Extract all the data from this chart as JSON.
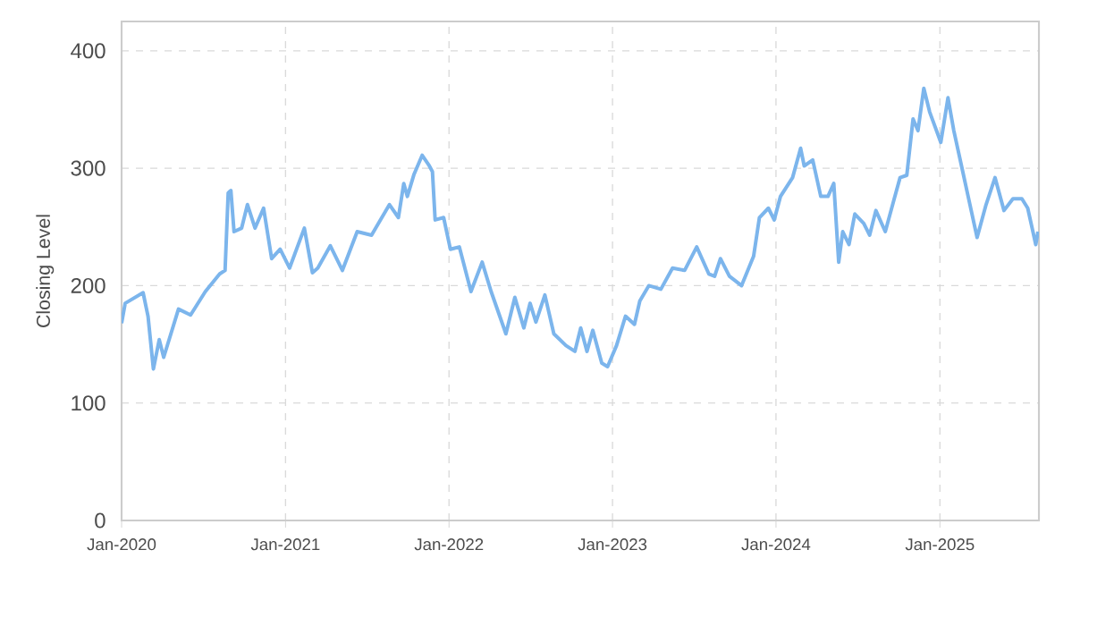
{
  "chart_data": {
    "type": "line",
    "ylabel": "Closing Level",
    "xlim": [
      "2020-01-01",
      "2025-08-10"
    ],
    "ylim": [
      0,
      425
    ],
    "xticks": [
      {
        "value": "2020-01-01",
        "label": "Jan-2020"
      },
      {
        "value": "2021-01-01",
        "label": "Jan-2021"
      },
      {
        "value": "2022-01-01",
        "label": "Jan-2022"
      },
      {
        "value": "2023-01-01",
        "label": "Jan-2023"
      },
      {
        "value": "2024-01-01",
        "label": "Jan-2024"
      },
      {
        "value": "2025-01-01",
        "label": "Jan-2025"
      }
    ],
    "yticks": [
      0,
      100,
      200,
      300,
      400
    ],
    "grid": true,
    "marker": "none",
    "line_style": "solid",
    "x": [
      "2020-01-01",
      "2020-01-09",
      "2020-02-18",
      "2020-02-29",
      "2020-03-12",
      "2020-03-25",
      "2020-04-04",
      "2020-05-07",
      "2020-06-03",
      "2020-07-06",
      "2020-08-07",
      "2020-08-19",
      "2020-08-26",
      "2020-09-01",
      "2020-09-08",
      "2020-09-25",
      "2020-10-08",
      "2020-10-25",
      "2020-11-13",
      "2020-12-01",
      "2020-12-20",
      "2021-01-10",
      "2021-02-12",
      "2021-03-02",
      "2021-03-14",
      "2021-04-11",
      "2021-05-08",
      "2021-06-10",
      "2021-07-12",
      "2021-08-21",
      "2021-09-10",
      "2021-09-22",
      "2021-09-30",
      "2021-10-15",
      "2021-11-02",
      "2021-11-18",
      "2021-11-25",
      "2021-12-01",
      "2021-12-20",
      "2022-01-04",
      "2022-01-24",
      "2022-02-19",
      "2022-03-16",
      "2022-04-05",
      "2022-05-08",
      "2022-05-28",
      "2022-06-17",
      "2022-07-01",
      "2022-07-14",
      "2022-08-03",
      "2022-08-23",
      "2022-09-19",
      "2022-10-09",
      "2022-10-22",
      "2022-11-05",
      "2022-11-18",
      "2022-12-08",
      "2022-12-21",
      "2023-01-10",
      "2023-01-30",
      "2023-02-19",
      "2023-03-03",
      "2023-03-23",
      "2023-04-19",
      "2023-05-15",
      "2023-06-11",
      "2023-07-08",
      "2023-08-04",
      "2023-08-17",
      "2023-08-30",
      "2023-09-19",
      "2023-10-16",
      "2023-11-12",
      "2023-11-25",
      "2023-12-15",
      "2023-12-28",
      "2024-01-11",
      "2024-02-07",
      "2024-02-25",
      "2024-03-04",
      "2024-03-23",
      "2024-04-10",
      "2024-04-26",
      "2024-05-09",
      "2024-05-20",
      "2024-05-29",
      "2024-06-12",
      "2024-06-25",
      "2024-07-15",
      "2024-07-28",
      "2024-08-11",
      "2024-09-01",
      "2024-09-21",
      "2024-10-04",
      "2024-10-19",
      "2024-11-02",
      "2024-11-13",
      "2024-11-26",
      "2024-12-09",
      "2025-01-03",
      "2025-01-19",
      "2025-02-01",
      "2025-02-21",
      "2025-03-05",
      "2025-03-25",
      "2025-04-14",
      "2025-05-04",
      "2025-05-24",
      "2025-06-13",
      "2025-07-03",
      "2025-07-16",
      "2025-08-03",
      "2025-08-08"
    ],
    "series": [
      {
        "color": "#7cb5ec",
        "values": [
          168,
          185,
          194,
          174,
          129,
          154,
          139,
          180,
          175,
          195,
          210,
          213,
          279,
          281,
          246,
          249,
          269,
          249,
          266,
          223,
          231,
          215,
          249,
          211,
          215,
          234,
          213,
          246,
          243,
          269,
          258,
          287,
          276,
          295,
          311,
          302,
          297,
          256,
          258,
          231,
          233,
          195,
          220,
          195,
          159,
          190,
          164,
          185,
          169,
          192,
          159,
          149,
          144,
          164,
          144,
          162,
          134,
          131,
          149,
          174,
          167,
          187,
          200,
          197,
          215,
          213,
          233,
          210,
          208,
          223,
          208,
          200,
          225,
          258,
          266,
          256,
          276,
          292,
          317,
          302,
          307,
          276,
          276,
          287,
          220,
          246,
          235,
          261,
          253,
          243,
          264,
          246,
          274,
          292,
          294,
          342,
          332,
          368,
          348,
          322,
          360,
          332,
          297,
          276,
          241,
          269,
          292,
          264,
          274,
          274,
          266,
          235,
          246
        ]
      }
    ]
  }
}
